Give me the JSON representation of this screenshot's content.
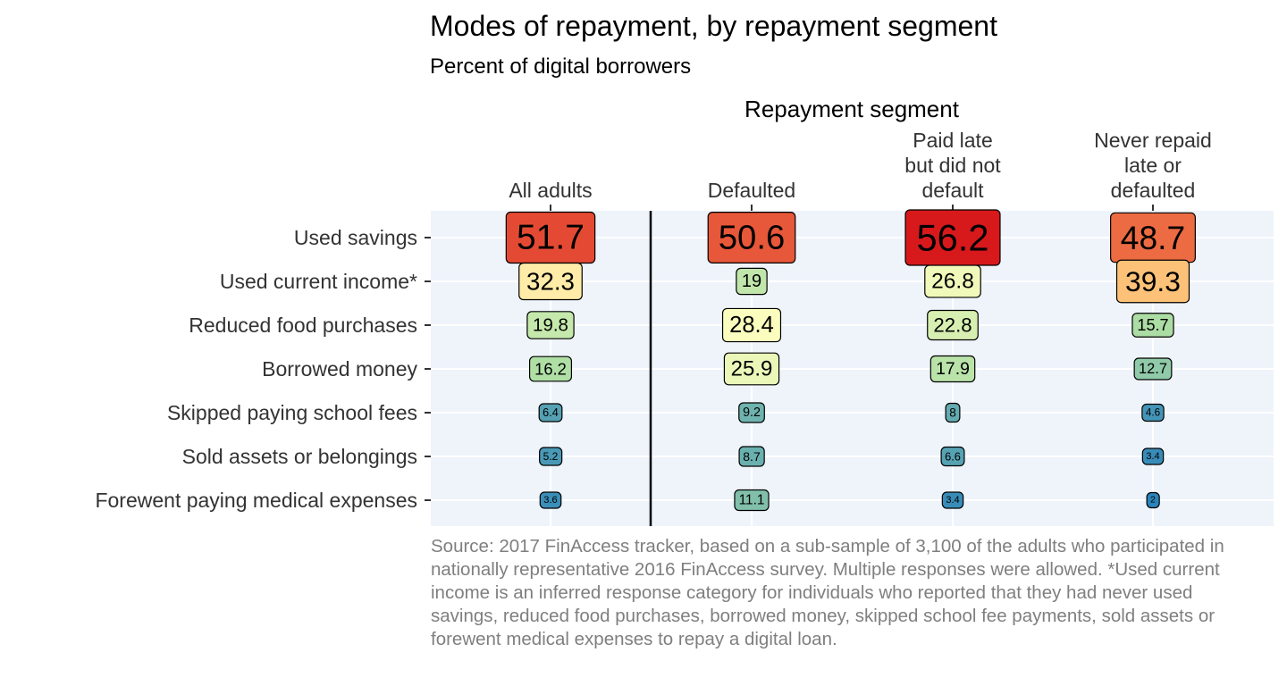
{
  "chart_data": {
    "type": "table",
    "title": "Modes of repayment, by repayment segment",
    "subtitle": "Percent of digital borrowers",
    "column_header": "Repayment segment",
    "columns": [
      [
        "All adults"
      ],
      [
        "Defaulted"
      ],
      [
        "Paid late",
        "but did not",
        "default"
      ],
      [
        "Never repaid",
        "late or",
        "defaulted"
      ]
    ],
    "rows": [
      "Used savings",
      "Used current income*",
      "Reduced food purchases",
      "Borrowed money",
      "Skipped paying school fees",
      "Sold assets or belongings",
      "Forewent paying medical expenses"
    ],
    "values": [
      [
        51.7,
        50.6,
        56.2,
        48.7
      ],
      [
        32.3,
        19,
        26.8,
        39.3
      ],
      [
        19.8,
        28.4,
        22.8,
        15.7
      ],
      [
        16.2,
        25.9,
        17.9,
        12.7
      ],
      [
        6.4,
        9.2,
        8,
        4.6
      ],
      [
        5.2,
        8.7,
        6.6,
        3.4
      ],
      [
        3.6,
        11.1,
        3.4,
        2
      ]
    ],
    "value_range": [
      2,
      56.2
    ],
    "color_scale": [
      "#2b83ba",
      "#abdda4",
      "#ffffbf",
      "#fdae61",
      "#d7191c"
    ],
    "grid": true,
    "caption": "Source: 2017 FinAccess tracker, based on a sub-sample of 3,100 of the adults who participated in nationally representative 2016 FinAccess survey. Multiple responses were allowed. *Used current income is an inferred response category for individuals who reported that they had never used savings, reduced food purchases, borrowed money, skipped school fee payments, sold assets or forewent medical expenses to repay a digital loan."
  }
}
